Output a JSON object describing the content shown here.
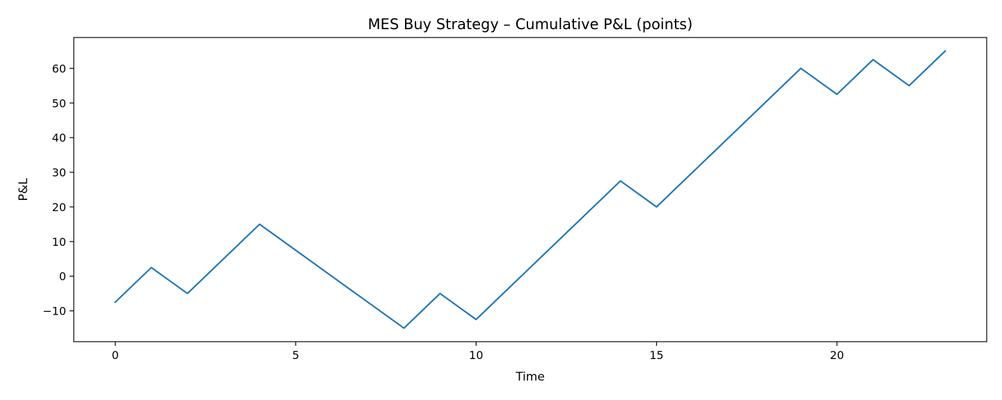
{
  "chart_data": {
    "type": "line",
    "title": "MES Buy Strategy – Cumulative P&L (points)",
    "xlabel": "Time",
    "ylabel": "P&L",
    "xlim": [
      -1.15,
      24.15
    ],
    "ylim": [
      -18.9,
      68.9
    ],
    "xticks": [
      0,
      5,
      10,
      15,
      20
    ],
    "yticks": [
      -10,
      0,
      10,
      20,
      30,
      40,
      50,
      60
    ],
    "xtick_labels": [
      "0",
      "5",
      "10",
      "15",
      "20"
    ],
    "ytick_labels": [
      "−10",
      "0",
      "10",
      "20",
      "30",
      "40",
      "50",
      "60"
    ],
    "grid": false,
    "legend": "none",
    "series": [
      {
        "color": "#1f77b4",
        "x": [
          0,
          1,
          2,
          3,
          4,
          5,
          6,
          7,
          8,
          9,
          10,
          11,
          12,
          13,
          14,
          15,
          16,
          17,
          18,
          19,
          20,
          21,
          22,
          23
        ],
        "values": [
          -7.5,
          2.5,
          -5,
          5,
          15,
          7.5,
          0,
          -7.5,
          -15,
          -5,
          -12.5,
          -2.5,
          7.5,
          17.5,
          27.5,
          20,
          30,
          40,
          50,
          60,
          52.5,
          62.5,
          55,
          65
        ]
      }
    ]
  }
}
